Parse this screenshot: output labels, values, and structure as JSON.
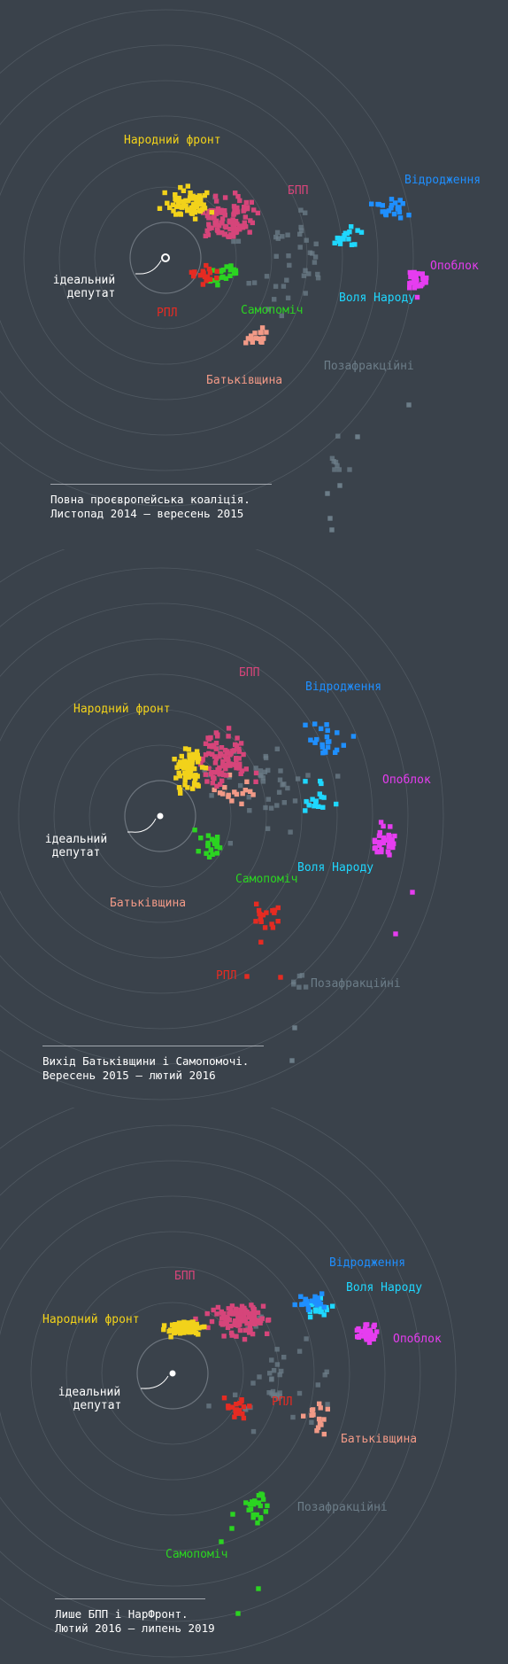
{
  "ideal_label": [
    "ідеальний",
    "депутат"
  ],
  "colors": {
    "bpp": "#d6457a",
    "narfront": "#f2d21a",
    "vidrodzhennya": "#1f8fff",
    "opoblok": "#e63df0",
    "vola": "#1fd7ff",
    "samopomich": "#2bd421",
    "batkivshchyna": "#f29a87",
    "rpl": "#e52b22",
    "pozafr": "#6c7d88"
  },
  "panels": [
    {
      "caption": [
        "Повна проєвропейська коаліція.",
        "Листопад 2014 – вересень 2015"
      ],
      "labels": {
        "narfront": "Народний фронт",
        "bpp": "БПП",
        "vidrodzhennya": "Відродження",
        "opoblok": "Опоблок",
        "vola": "Воля Народу",
        "samopomich": "Самопоміч",
        "rpl": "РПЛ",
        "batkivshchyna": "Батьківщина",
        "pozafr": "Позафракційні"
      }
    },
    {
      "caption": [
        "Вихід Батьківщини і Самопомочі.",
        "Вересень 2015 – лютий 2016"
      ],
      "labels": {
        "bpp": "БПП",
        "vidrodzhennya": "Відродження",
        "narfront": "Народний фронт",
        "opoblok": "Опоблок",
        "samopomich": "Самопоміч",
        "vola": "Воля Народу",
        "batkivshchyna": "Батьківщина",
        "rpl": "РПЛ",
        "pozafr": "Позафракційні"
      }
    },
    {
      "caption": [
        "Лише БПП і НарФронт.",
        "Лютий 2016 – липень 2019"
      ],
      "labels": {
        "vidrodzhennya": "Відродження",
        "vola": "Воля Народу",
        "bpp": "БПП",
        "narfront": "Народний фронт",
        "opoblok": "Опоблок",
        "rpl": "РПЛ",
        "batkivshchyna": "Батьківщина",
        "pozafr": "Позафракційні",
        "samopomich": "Самопоміч"
      }
    }
  ],
  "chart_data": [
    {
      "type": "scatter",
      "title": "Повна проєвропейська коаліція. Листопад 2014 – вересень 2015",
      "series": [
        {
          "name": "Народний фронт",
          "n": 70
        },
        {
          "name": "БПП",
          "n": 95
        },
        {
          "name": "Самопоміч",
          "n": 22
        },
        {
          "name": "РПЛ",
          "n": 18
        },
        {
          "name": "Батьківщина",
          "n": 16
        },
        {
          "name": "Відродження",
          "n": 22
        },
        {
          "name": "Воля Народу",
          "n": 16
        },
        {
          "name": "Опоблок",
          "n": 35
        },
        {
          "name": "Позафракційні",
          "n": 40
        }
      ]
    },
    {
      "type": "scatter",
      "title": "Вихід Батьківщини і Самопомочі. Вересень 2015 – лютий 2016",
      "series": [
        {
          "name": "Народний фронт",
          "n": 70
        },
        {
          "name": "БПП",
          "n": 95
        },
        {
          "name": "Самопоміч",
          "n": 22
        },
        {
          "name": "РПЛ",
          "n": 18
        },
        {
          "name": "Батьківщина",
          "n": 16
        },
        {
          "name": "Відродження",
          "n": 22
        },
        {
          "name": "Воля Народу",
          "n": 16
        },
        {
          "name": "Опоблок",
          "n": 35
        },
        {
          "name": "Позафракційні",
          "n": 40
        }
      ]
    },
    {
      "type": "scatter",
      "title": "Лише БПП і НарФронт. Лютий 2016 – липень 2019",
      "series": [
        {
          "name": "Народний фронт",
          "n": 70
        },
        {
          "name": "БПП",
          "n": 95
        },
        {
          "name": "Самопоміч",
          "n": 22
        },
        {
          "name": "РПЛ",
          "n": 18
        },
        {
          "name": "Батьківщина",
          "n": 16
        },
        {
          "name": "Відродження",
          "n": 22
        },
        {
          "name": "Воля Народу",
          "n": 16
        },
        {
          "name": "Опоблок",
          "n": 35
        },
        {
          "name": "Позафракційні",
          "n": 40
        }
      ]
    }
  ]
}
